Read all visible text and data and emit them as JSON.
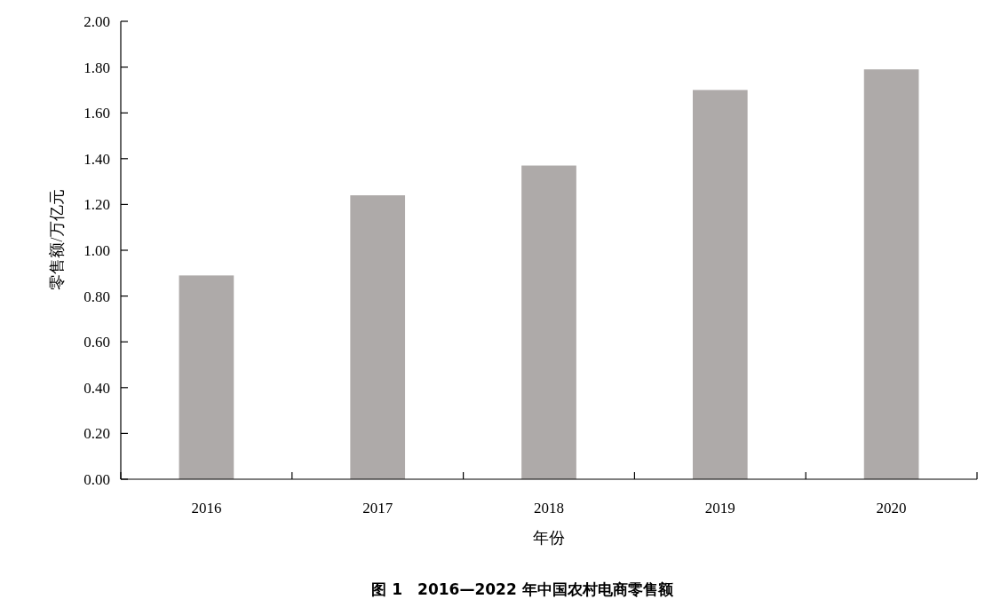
{
  "chart_data": {
    "type": "bar",
    "title": "图 1　2016—2022 年中国农村电商零售额",
    "xlabel": "年份",
    "ylabel": "零售额/万亿元",
    "categories": [
      "2016",
      "2017",
      "2018",
      "2019",
      "2020"
    ],
    "values": [
      0.89,
      1.24,
      1.37,
      1.7,
      1.79
    ],
    "color": "#aeaaa9",
    "ylim": [
      0,
      2
    ],
    "yticks": [
      {
        "value": 0,
        "label": "0.00"
      },
      {
        "value": 0.2,
        "label": "0.20"
      },
      {
        "value": 0.4,
        "label": "0.40"
      },
      {
        "value": 0.6,
        "label": "0.60"
      },
      {
        "value": 0.8,
        "label": "0.80"
      },
      {
        "value": 1,
        "label": "1.00"
      },
      {
        "value": 1.2,
        "label": "1.20"
      },
      {
        "value": 1.4,
        "label": "1.40"
      },
      {
        "value": 1.6,
        "label": "1.60"
      },
      {
        "value": 1.8,
        "label": "1.80"
      },
      {
        "value": 2,
        "label": "2.00"
      }
    ],
    "grid": false
  }
}
